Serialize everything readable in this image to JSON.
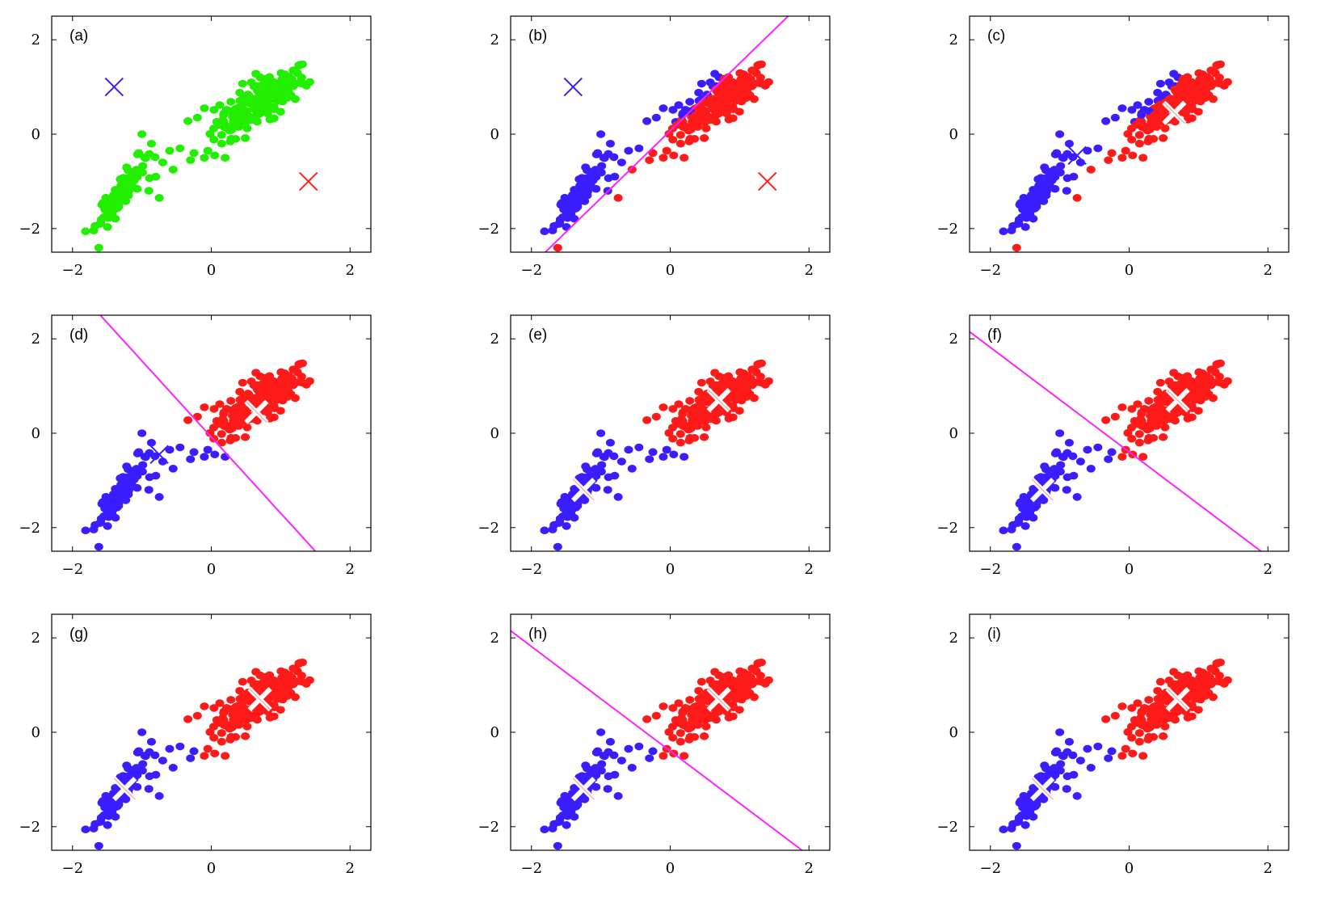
{
  "figure_title": "",
  "chart_data": [
    {
      "type": "scatter",
      "label": "(a)",
      "xlim": [
        -2.3,
        2.3
      ],
      "ylim": [
        -2.5,
        2.5
      ],
      "xticks": [
        "−2",
        "0",
        "2"
      ],
      "yticks": [
        "−2",
        "0",
        "2"
      ],
      "point_mode": "all_green",
      "centroids": [
        {
          "x": -1.4,
          "y": 1.0,
          "color": "#3b1eff",
          "style": "thin"
        },
        {
          "x": 1.4,
          "y": -1.0,
          "color": "#ff2020",
          "style": "thin"
        }
      ],
      "boundary": null
    },
    {
      "type": "scatter",
      "label": "(b)",
      "xlim": [
        -2.3,
        2.3
      ],
      "ylim": [
        -2.5,
        2.5
      ],
      "xticks": [
        "−2",
        "0",
        "2"
      ],
      "yticks": [
        "−2",
        "0",
        "2"
      ],
      "point_mode": "split_b",
      "centroids": [
        {
          "x": -1.4,
          "y": 1.0,
          "color": "#3b1eff",
          "style": "thin"
        },
        {
          "x": 1.4,
          "y": -1.0,
          "color": "#ff2020",
          "style": "thin"
        }
      ],
      "boundary": {
        "x1": -1.8,
        "y1": -2.5,
        "x2": 1.7,
        "y2": 2.5
      }
    },
    {
      "type": "scatter",
      "label": "(c)",
      "xlim": [
        -2.3,
        2.3
      ],
      "ylim": [
        -2.5,
        2.5
      ],
      "xticks": [
        "−2",
        "0",
        "2"
      ],
      "yticks": [
        "−2",
        "0",
        "2"
      ],
      "point_mode": "split_b",
      "centroids": [
        {
          "x": -0.75,
          "y": -0.45,
          "color": "#3b1eff",
          "style": "thin"
        },
        {
          "x": 0.65,
          "y": 0.45,
          "color": "#ffffff",
          "style": "bold"
        }
      ],
      "boundary": null
    },
    {
      "type": "scatter",
      "label": "(d)",
      "xlim": [
        -2.3,
        2.3
      ],
      "ylim": [
        -2.5,
        2.5
      ],
      "xticks": [
        "−2",
        "0",
        "2"
      ],
      "yticks": [
        "−2",
        "0",
        "2"
      ],
      "point_mode": "split_final_d",
      "centroids": [
        {
          "x": -0.75,
          "y": -0.45,
          "color": "#3b1eff",
          "style": "thin"
        },
        {
          "x": 0.65,
          "y": 0.45,
          "color": "#ffffff",
          "style": "bold"
        }
      ],
      "boundary": {
        "x1": -1.6,
        "y1": 2.5,
        "x2": 1.5,
        "y2": -2.5
      }
    },
    {
      "type": "scatter",
      "label": "(e)",
      "xlim": [
        -2.3,
        2.3
      ],
      "ylim": [
        -2.5,
        2.5
      ],
      "xticks": [
        "−2",
        "0",
        "2"
      ],
      "yticks": [
        "−2",
        "0",
        "2"
      ],
      "point_mode": "split_final_d",
      "centroids": [
        {
          "x": -1.25,
          "y": -1.2,
          "color": "#ffffff",
          "style": "bold"
        },
        {
          "x": 0.7,
          "y": 0.7,
          "color": "#ffffff",
          "style": "bold"
        }
      ],
      "boundary": null
    },
    {
      "type": "scatter",
      "label": "(f)",
      "xlim": [
        -2.3,
        2.3
      ],
      "ylim": [
        -2.5,
        2.5
      ],
      "xticks": [
        "−2",
        "0",
        "2"
      ],
      "yticks": [
        "−2",
        "0",
        "2"
      ],
      "point_mode": "split_final",
      "centroids": [
        {
          "x": -1.25,
          "y": -1.2,
          "color": "#ffffff",
          "style": "bold"
        },
        {
          "x": 0.7,
          "y": 0.7,
          "color": "#ffffff",
          "style": "bold"
        }
      ],
      "boundary": {
        "x1": -2.3,
        "y1": 2.15,
        "x2": 1.9,
        "y2": -2.5
      }
    },
    {
      "type": "scatter",
      "label": "(g)",
      "xlim": [
        -2.3,
        2.3
      ],
      "ylim": [
        -2.5,
        2.5
      ],
      "xticks": [
        "−2",
        "0",
        "2"
      ],
      "yticks": [
        "−2",
        "0",
        "2"
      ],
      "point_mode": "split_final",
      "centroids": [
        {
          "x": -1.25,
          "y": -1.2,
          "color": "#ffffff",
          "style": "bold"
        },
        {
          "x": 0.7,
          "y": 0.7,
          "color": "#ffffff",
          "style": "bold"
        }
      ],
      "boundary": null
    },
    {
      "type": "scatter",
      "label": "(h)",
      "xlim": [
        -2.3,
        2.3
      ],
      "ylim": [
        -2.5,
        2.5
      ],
      "xticks": [
        "−2",
        "0",
        "2"
      ],
      "yticks": [
        "−2",
        "0",
        "2"
      ],
      "point_mode": "split_final",
      "centroids": [
        {
          "x": -1.25,
          "y": -1.2,
          "color": "#ffffff",
          "style": "bold"
        },
        {
          "x": 0.7,
          "y": 0.7,
          "color": "#ffffff",
          "style": "bold"
        }
      ],
      "boundary": {
        "x1": -2.3,
        "y1": 2.15,
        "x2": 1.9,
        "y2": -2.5
      }
    },
    {
      "type": "scatter",
      "label": "(i)",
      "xlim": [
        -2.3,
        2.3
      ],
      "ylim": [
        -2.5,
        2.5
      ],
      "xticks": [
        "−2",
        "0",
        "2"
      ],
      "yticks": [
        "−2",
        "0",
        "2"
      ],
      "point_mode": "split_final",
      "centroids": [
        {
          "x": -1.25,
          "y": -1.2,
          "color": "#ffffff",
          "style": "bold"
        },
        {
          "x": 0.7,
          "y": 0.7,
          "color": "#ffffff",
          "style": "bold"
        }
      ],
      "boundary": null
    }
  ],
  "colors": {
    "green": "#22ee00",
    "blue": "#3b1eff",
    "red": "#ff1a1a",
    "boundary": "#ff22ff"
  }
}
